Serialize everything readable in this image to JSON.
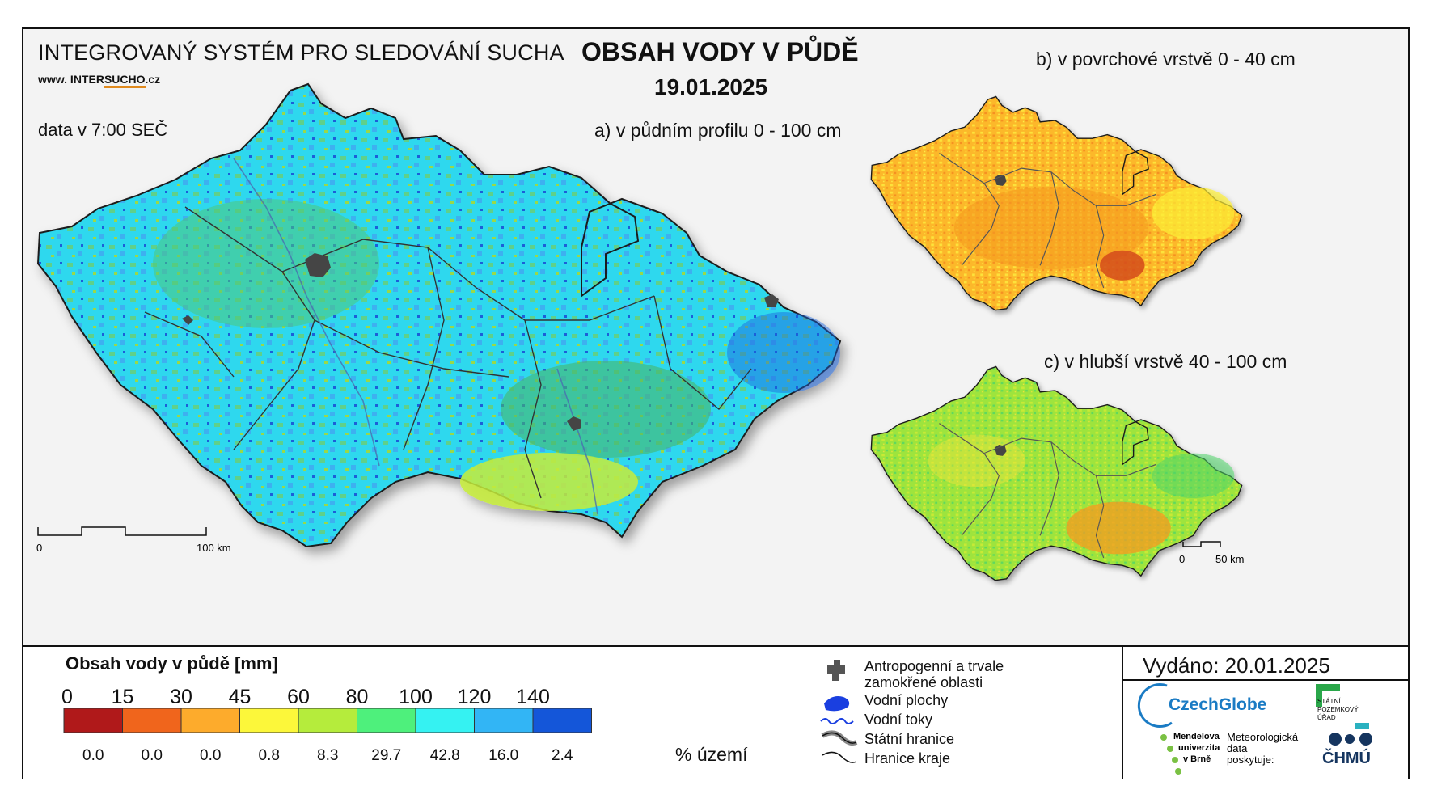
{
  "header": {
    "system_title": "INTEGROVANÝ SYSTÉM PRO SLEDOVÁNÍ SUCHA",
    "website_prefix": "www. INTER",
    "website_mid": "SUCHO",
    "website_suffix": ".cz",
    "data_time": "data v 7:00 SEČ",
    "main_title": "OBSAH VODY V PŮDĚ",
    "date": "19.01.2025"
  },
  "panels": {
    "a_label": "a) v půdním profilu 0 - 100 cm",
    "b_label": "b) v povrchové vrstvě 0 - 40 cm",
    "c_label": "c) v hlubší vrstvě 40 - 100 cm"
  },
  "scale": {
    "main_zero": "0",
    "main_end": "100 km",
    "small_zero": "0",
    "small_end": "50 km"
  },
  "legend": {
    "title": "Obsah vody v půdě  [mm]",
    "ticks": [
      "0",
      "15",
      "30",
      "45",
      "60",
      "80",
      "100",
      "120",
      "140"
    ],
    "classes": [
      {
        "color": "#b0191a",
        "percent": "0.0"
      },
      {
        "color": "#f0651c",
        "percent": "0.0"
      },
      {
        "color": "#fdab2c",
        "percent": "0.0"
      },
      {
        "color": "#fcf73a",
        "percent": "0.8"
      },
      {
        "color": "#b5ec3c",
        "percent": "8.3"
      },
      {
        "color": "#4ef07c",
        "percent": "29.7"
      },
      {
        "color": "#35f2f2",
        "percent": "42.8"
      },
      {
        "color": "#32b5f5",
        "percent": "16.0"
      },
      {
        "color": "#1456d9",
        "percent": "2.4"
      }
    ],
    "percent_label": "% území"
  },
  "symbols": {
    "urban": "Antropogenní a trvale zamokřené oblasti",
    "water_bodies": "Vodní plochy",
    "rivers": "Vodní toky",
    "state_border": "Státní hranice",
    "region_border": "Hranice kraje"
  },
  "issued": "Vydáno: 20.01.2025",
  "logos": {
    "czechglobe": "CzechGlobe",
    "spu_line1": "STÁTNÍ",
    "spu_line2": "POZEMKOVÝ",
    "spu_line3": "ÚŘAD",
    "mendel_line1": "Mendelova",
    "mendel_line2": "univerzita",
    "mendel_line3": "v Brně",
    "meteo_line1": "Meteorologická",
    "meteo_line2": "data",
    "meteo_line3": "poskytuje:",
    "chmu": "ČHMÚ"
  }
}
